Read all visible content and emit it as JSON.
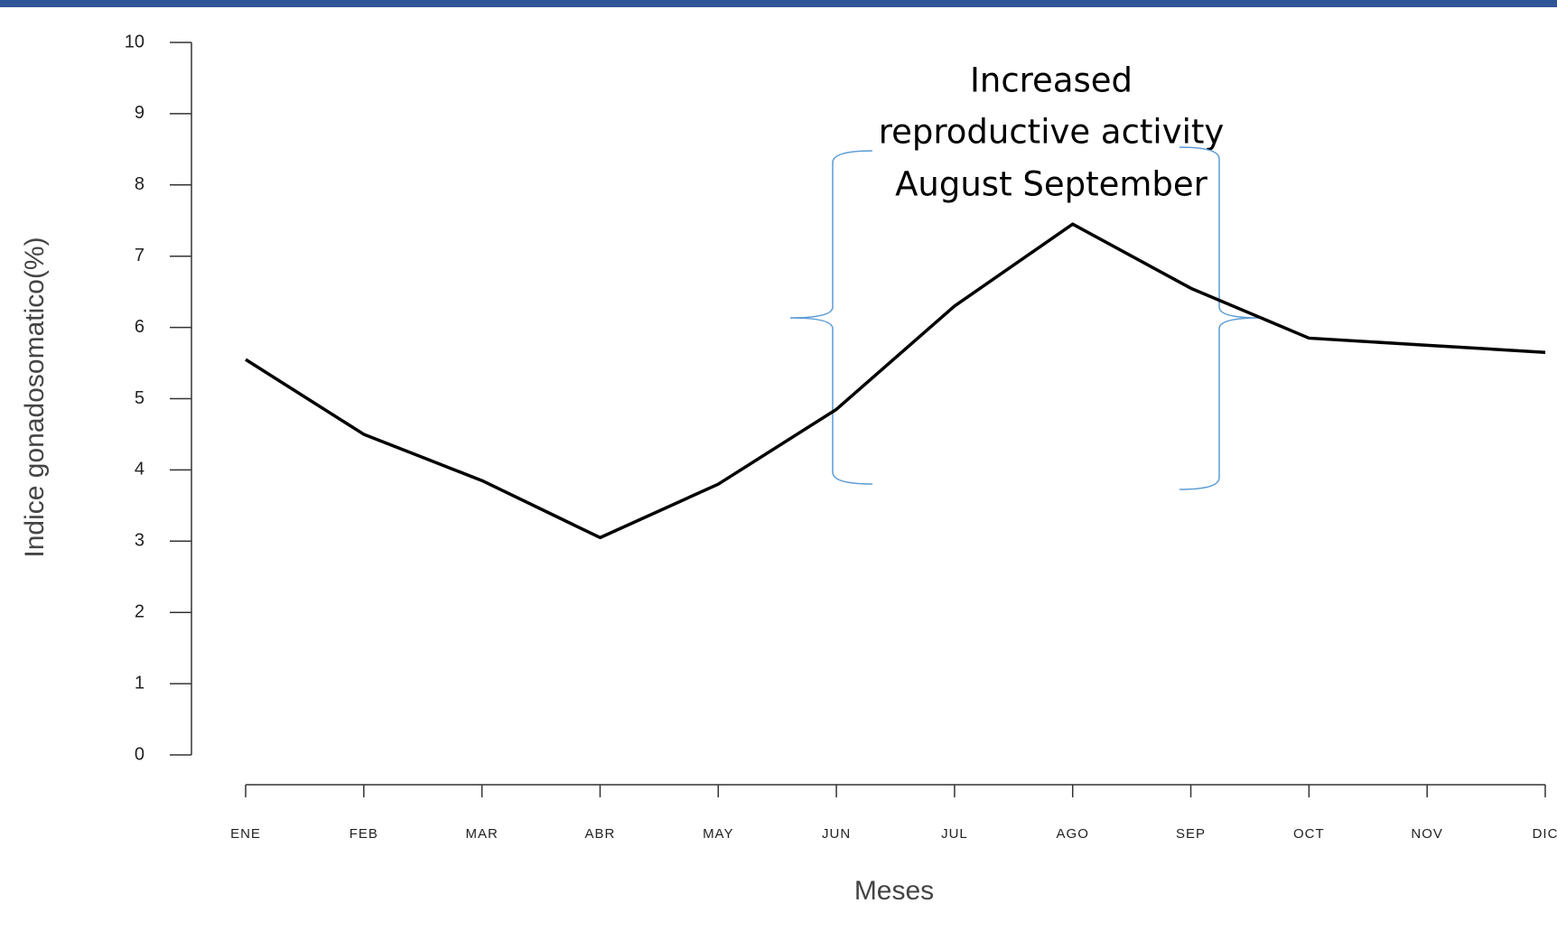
{
  "chart_data": {
    "type": "line",
    "y_label": "Indice gonadosomatico(%)",
    "x_label": "Meses",
    "annotation": [
      "Increased",
      "reproductive activity",
      "August September"
    ],
    "categories": [
      "ENE",
      "FEB",
      "MAR",
      "ABR",
      "MAY",
      "JUN",
      "JUL",
      "AGO",
      "SEP",
      "OCT",
      "NOV",
      "DIC"
    ],
    "series": [
      {
        "color": "#000000",
        "values": [
          5.55,
          4.5,
          3.85,
          3.05,
          3.8,
          4.85,
          6.3,
          7.45,
          6.55,
          5.85,
          5.75,
          5.65
        ]
      }
    ],
    "ylim": [
      0,
      10
    ],
    "yticks": [
      0,
      1,
      2,
      3,
      4,
      5,
      6,
      7,
      8,
      9,
      10
    ],
    "grid": false
  }
}
